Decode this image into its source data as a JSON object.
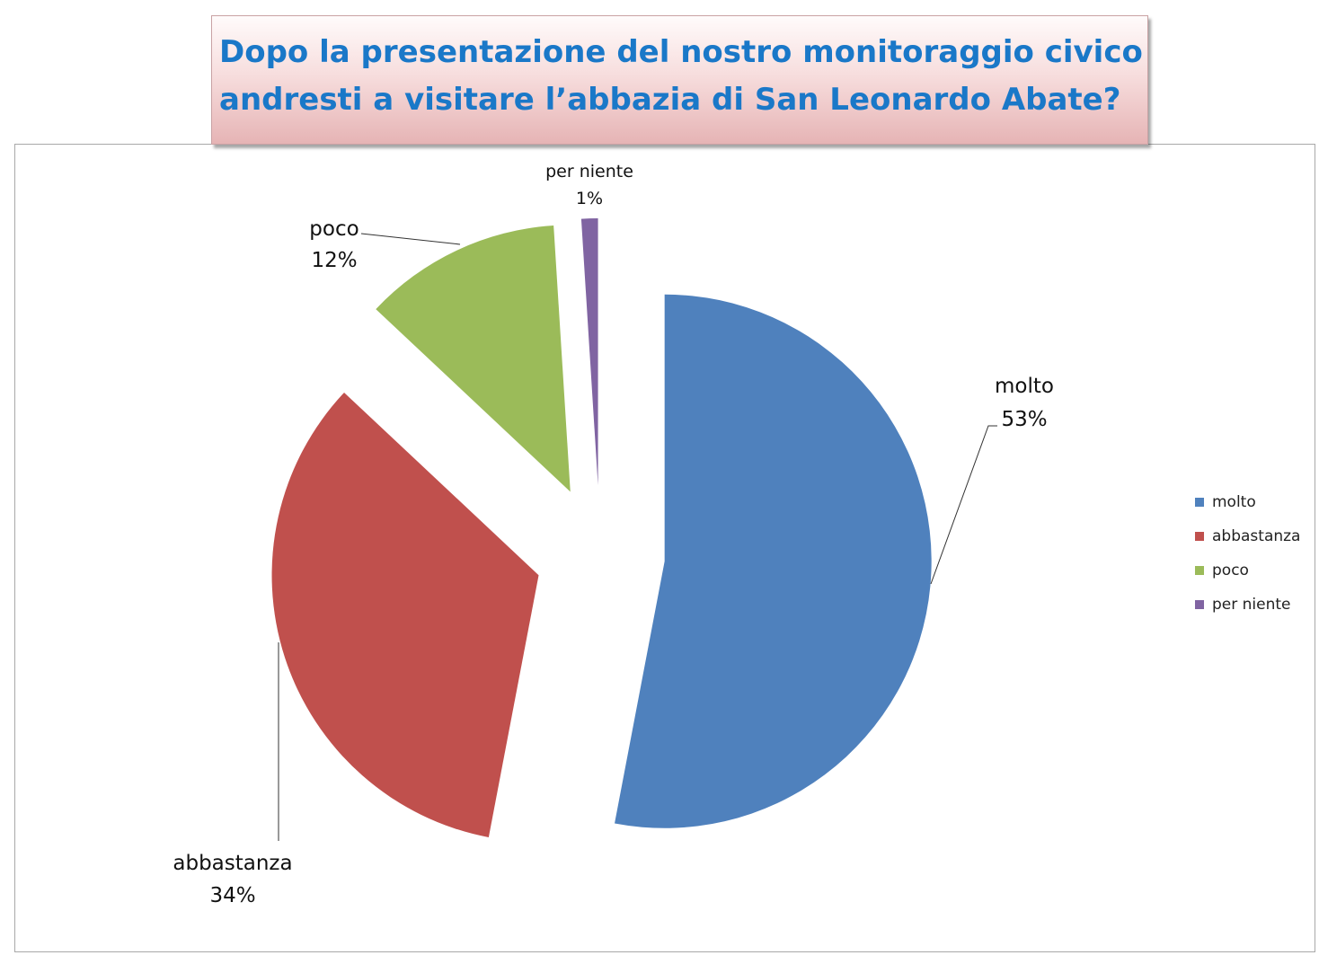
{
  "title": {
    "line1": "Dopo la presentazione del nostro monitoraggio civico",
    "line2": "andresti a visitare l’abbazia di San Leonardo Abate?"
  },
  "chart_data": {
    "type": "pie",
    "title": "Dopo la presentazione del nostro monitoraggio civico andresti a visitare l’abbazia di San Leonardo Abate?",
    "legend_position": "right",
    "categories": [
      "molto",
      "abbastanza",
      "poco",
      "per niente"
    ],
    "values": [
      53,
      34,
      12,
      1
    ],
    "labels": [
      "53%",
      "34%",
      "12%",
      "1%"
    ],
    "colors": [
      "#4f81bd",
      "#c0504d",
      "#9bbb59",
      "#8064a2"
    ],
    "exploded": true
  }
}
